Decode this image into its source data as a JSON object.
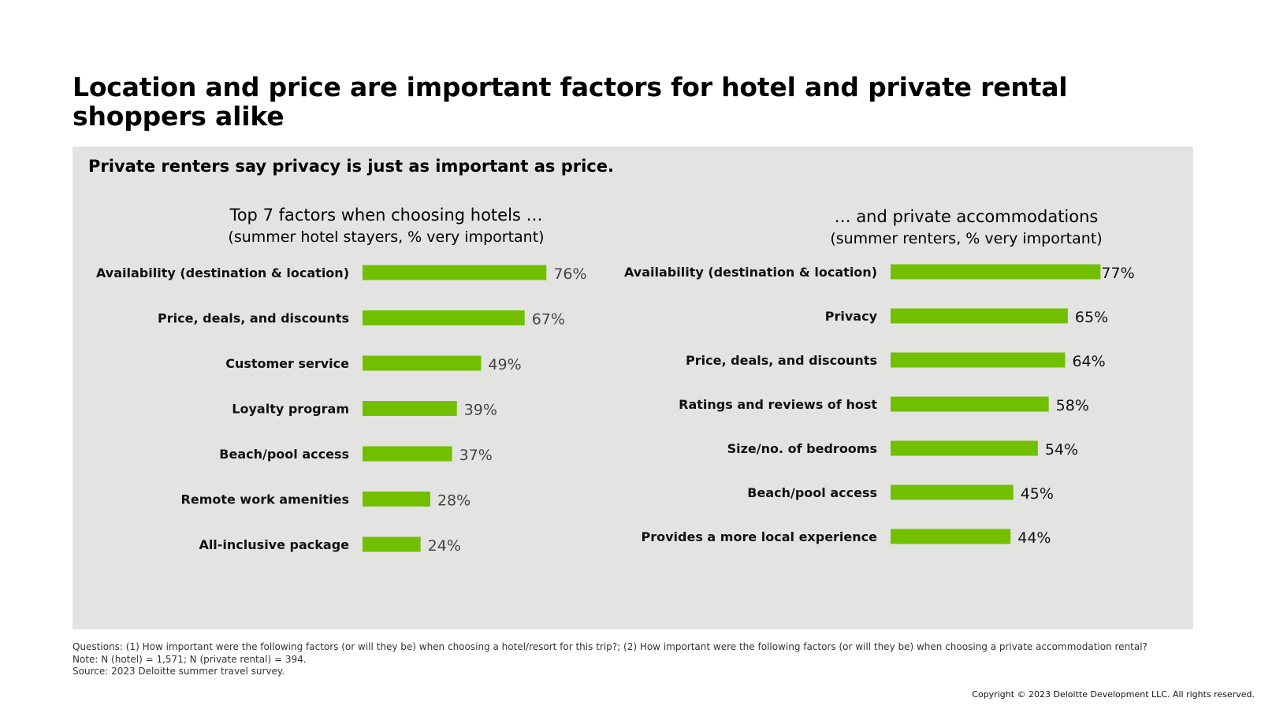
{
  "page": {
    "title": "Location and price are important factors for hotel and private rental shoppers alike",
    "subtitle": "Private renters say privacy is just as important as price.",
    "footnotes": {
      "questions": "Questions: (1) How important were the following factors (or will they be) when choosing a hotel/resort for this trip?; (2) How important were the following factors (or will they be) when choosing a private accommodation rental?",
      "note": "Note: N (hotel) = 1,571; N (private rental) = 394.",
      "source": "Source: 2023 Deloitte summer travel survey."
    },
    "copyright": "Copyright © 2023 Deloitte Development LLC. All rights reserved."
  },
  "colors": {
    "bar": "#72bf00",
    "panel": "#e3e3e2"
  },
  "chart_data": [
    {
      "type": "bar",
      "orientation": "horizontal",
      "title": "Top 7 factors when choosing hotels …",
      "subtitle": "(summer hotel stayers, % very important)",
      "categories": [
        "Availability (destination & location)",
        "Price, deals, and discounts",
        "Customer service",
        "Loyalty program",
        "Beach/pool access",
        "Remote work amenities",
        "All-inclusive package"
      ],
      "values": [
        76,
        67,
        49,
        39,
        37,
        28,
        24
      ],
      "value_labels": [
        "76%",
        "67%",
        "49%",
        "39%",
        "37%",
        "28%",
        "24%"
      ],
      "xlim": [
        0,
        100
      ],
      "grid": false,
      "legend": "none"
    },
    {
      "type": "bar",
      "orientation": "horizontal",
      "title": "… and private accommodations",
      "subtitle": "(summer renters, % very important)",
      "categories": [
        "Availability (destination & location)",
        "Privacy",
        "Price, deals, and discounts",
        "Ratings and reviews of host",
        "Size/no. of bedrooms",
        "Beach/pool access",
        "Provides a more local experience"
      ],
      "values": [
        77,
        65,
        64,
        58,
        54,
        45,
        44
      ],
      "value_labels": [
        "77%",
        "65%",
        "64%",
        "58%",
        "54%",
        "45%",
        "44%"
      ],
      "xlim": [
        0,
        100
      ],
      "grid": false,
      "legend": "none"
    }
  ]
}
